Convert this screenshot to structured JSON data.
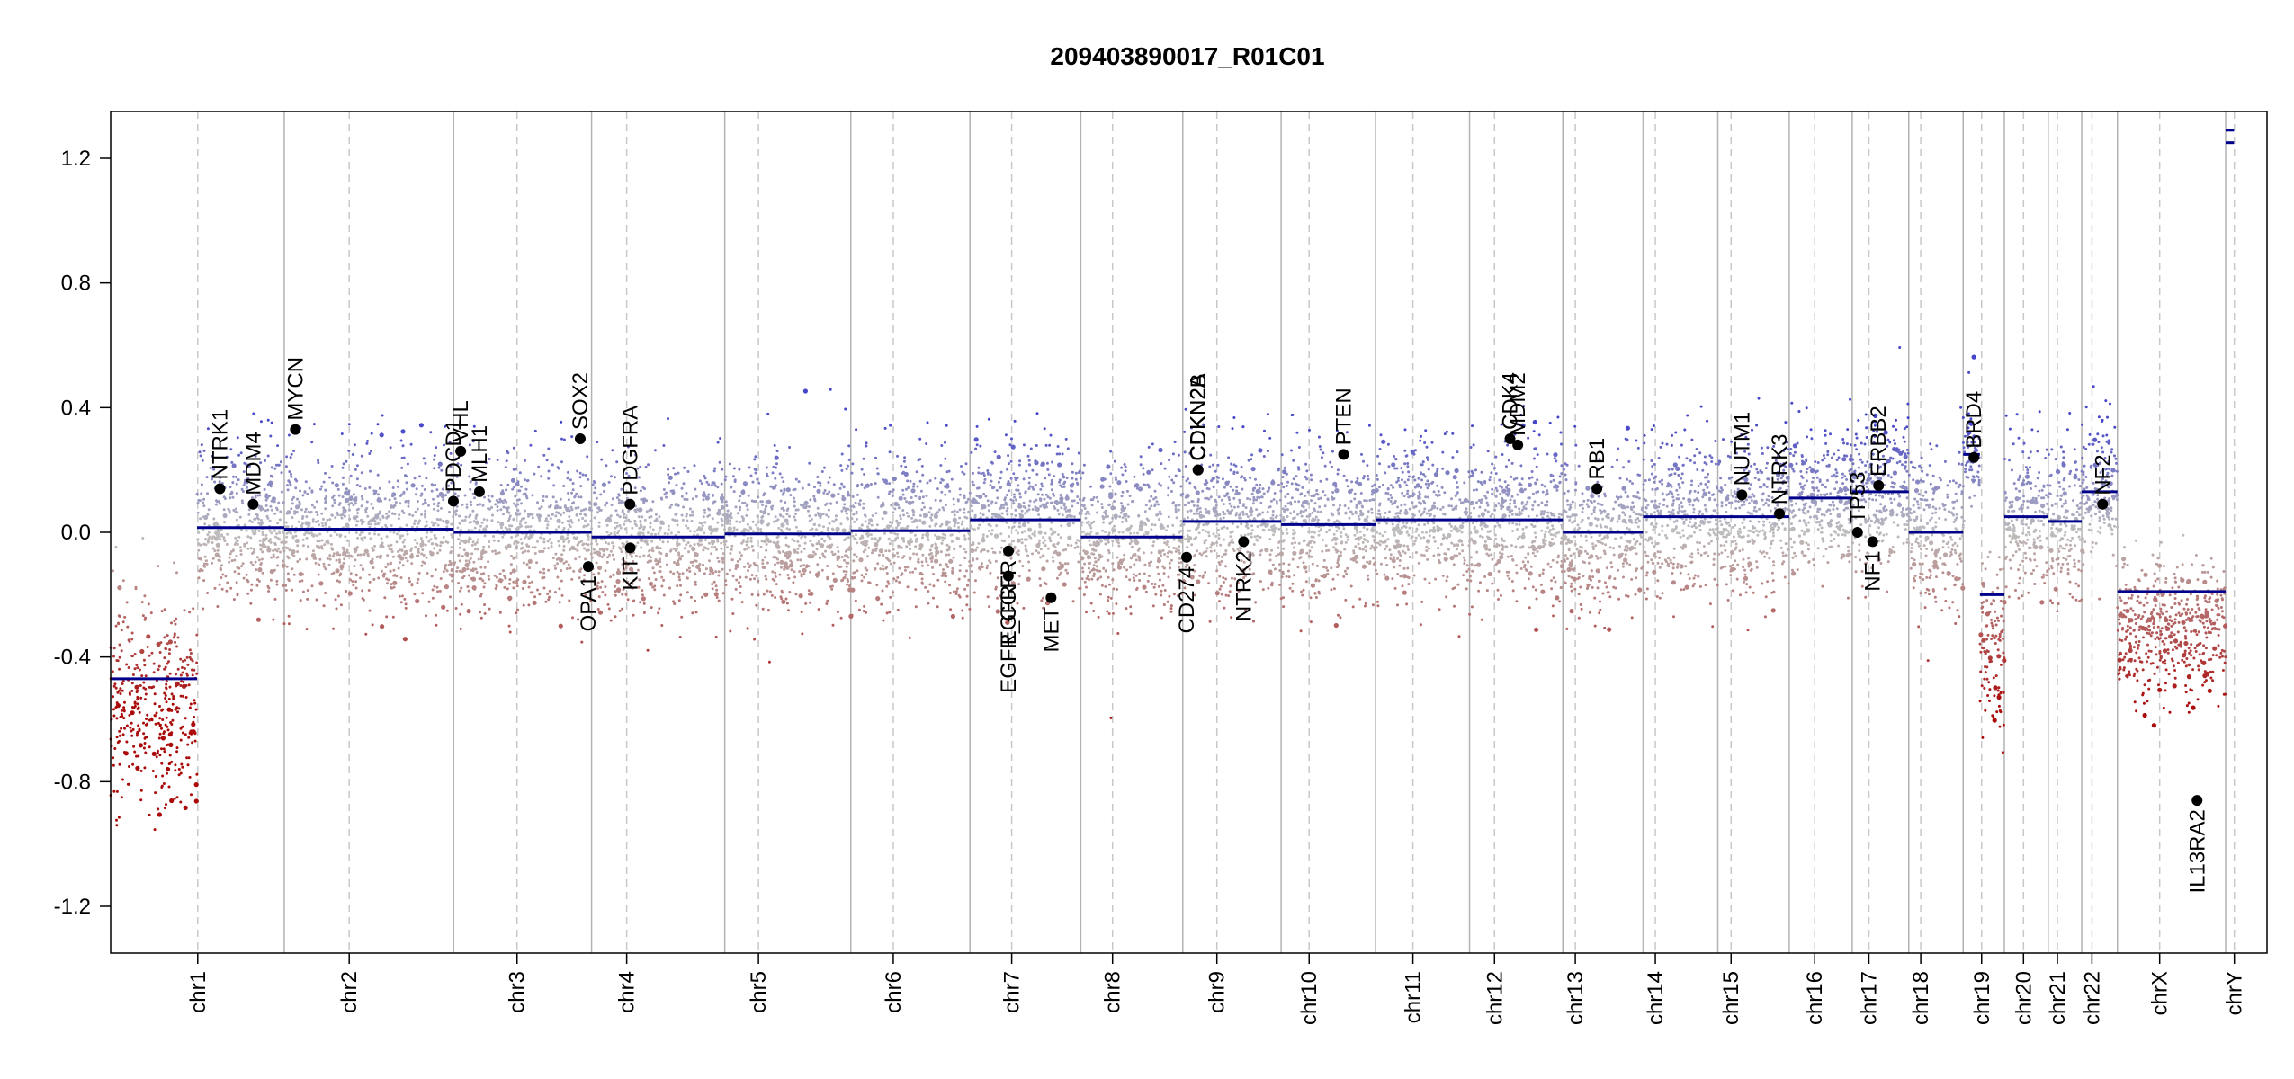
{
  "chart_data": {
    "type": "scatter",
    "title": "209403890017_R01C01",
    "xlabel": "",
    "ylabel": "",
    "ylim": [
      -1.35,
      1.35
    ],
    "grid": false,
    "legend": "none",
    "colors": {
      "segment": "#00008b",
      "gain_points": "#3a3ad0",
      "loss_points": "#a80000",
      "neutral_points": "#b4b4b4",
      "gene_marker": "#000000",
      "chromosome_boundary": "#b3b3b3",
      "centromere": "#c8c8c8",
      "frame": "#000000"
    },
    "y_ticks": [
      -1.2,
      -0.8,
      -0.4,
      0.0,
      0.4,
      0.8,
      1.2
    ],
    "y_tick_labels": [
      "-1.2",
      "-0.8",
      "-0.4",
      "0.0",
      "0.4",
      "0.8",
      "1.2"
    ],
    "chromosomes": [
      {
        "name": "chr1",
        "length": 249.2,
        "centromere": 125.0
      },
      {
        "name": "chr2",
        "length": 243.2,
        "centromere": 93.3
      },
      {
        "name": "chr3",
        "length": 198.0,
        "centromere": 91.0
      },
      {
        "name": "chr4",
        "length": 191.2,
        "centromere": 50.4
      },
      {
        "name": "chr5",
        "length": 180.9,
        "centromere": 48.4
      },
      {
        "name": "chr6",
        "length": 171.1,
        "centromere": 61.0
      },
      {
        "name": "chr7",
        "length": 159.1,
        "centromere": 59.9
      },
      {
        "name": "chr8",
        "length": 146.4,
        "centromere": 45.6
      },
      {
        "name": "chr9",
        "length": 141.2,
        "centromere": 49.0
      },
      {
        "name": "chr10",
        "length": 135.5,
        "centromere": 40.2
      },
      {
        "name": "chr11",
        "length": 135.0,
        "centromere": 53.7
      },
      {
        "name": "chr12",
        "length": 133.9,
        "centromere": 35.8
      },
      {
        "name": "chr13",
        "length": 115.2,
        "centromere": 17.9
      },
      {
        "name": "chr14",
        "length": 107.3,
        "centromere": 17.6
      },
      {
        "name": "chr15",
        "length": 102.5,
        "centromere": 19.0
      },
      {
        "name": "chr16",
        "length": 90.4,
        "centromere": 36.6
      },
      {
        "name": "chr17",
        "length": 81.2,
        "centromere": 24.0
      },
      {
        "name": "chr18",
        "length": 78.1,
        "centromere": 17.2
      },
      {
        "name": "chr19",
        "length": 59.1,
        "centromere": 26.5
      },
      {
        "name": "chr20",
        "length": 63.0,
        "centromere": 27.5
      },
      {
        "name": "chr21",
        "length": 48.1,
        "centromere": 13.2
      },
      {
        "name": "chr22",
        "length": 51.3,
        "centromere": 14.7
      },
      {
        "name": "chrX",
        "length": 155.3,
        "centromere": 60.6
      },
      {
        "name": "chrY",
        "length": 59.4,
        "centromere": 12.5
      }
    ],
    "segments": [
      {
        "chrom": "chr1",
        "start": 0,
        "end": 124,
        "value": -0.47
      },
      {
        "chrom": "chr1",
        "start": 124,
        "end": 249.2,
        "value": 0.015
      },
      {
        "chrom": "chr2",
        "start": 0,
        "end": 243.2,
        "value": 0.01
      },
      {
        "chrom": "chr3",
        "start": 0,
        "end": 198.0,
        "value": 0.0
      },
      {
        "chrom": "chr4",
        "start": 0,
        "end": 191.2,
        "value": -0.015
      },
      {
        "chrom": "chr5",
        "start": 0,
        "end": 180.9,
        "value": -0.005
      },
      {
        "chrom": "chr6",
        "start": 0,
        "end": 171.1,
        "value": 0.005
      },
      {
        "chrom": "chr7",
        "start": 0,
        "end": 159.1,
        "value": 0.04
      },
      {
        "chrom": "chr8",
        "start": 0,
        "end": 146.4,
        "value": -0.015
      },
      {
        "chrom": "chr9",
        "start": 0,
        "end": 141.2,
        "value": 0.035
      },
      {
        "chrom": "chr10",
        "start": 0,
        "end": 135.5,
        "value": 0.025
      },
      {
        "chrom": "chr11",
        "start": 0,
        "end": 135.0,
        "value": 0.04
      },
      {
        "chrom": "chr12",
        "start": 0,
        "end": 133.9,
        "value": 0.04
      },
      {
        "chrom": "chr13",
        "start": 0,
        "end": 115.2,
        "value": 0.0
      },
      {
        "chrom": "chr14",
        "start": 0,
        "end": 107.3,
        "value": 0.05
      },
      {
        "chrom": "chr15",
        "start": 0,
        "end": 102.5,
        "value": 0.05
      },
      {
        "chrom": "chr16",
        "start": 0,
        "end": 90.4,
        "value": 0.11
      },
      {
        "chrom": "chr17",
        "start": 0,
        "end": 81.2,
        "value": 0.13
      },
      {
        "chrom": "chr18",
        "start": 0,
        "end": 78.1,
        "value": 0.0
      },
      {
        "chrom": "chr19",
        "start": 0,
        "end": 24,
        "value": 0.25
      },
      {
        "chrom": "chr19",
        "start": 24,
        "end": 59.1,
        "value": -0.2
      },
      {
        "chrom": "chr20",
        "start": 0,
        "end": 63.0,
        "value": 0.05
      },
      {
        "chrom": "chr21",
        "start": 0,
        "end": 48.1,
        "value": 0.035
      },
      {
        "chrom": "chr22",
        "start": 0,
        "end": 51.3,
        "value": 0.13
      },
      {
        "chrom": "chrX",
        "start": 0,
        "end": 155.3,
        "value": -0.19
      },
      {
        "chrom": "chrY",
        "start": 0,
        "end": 12,
        "value": 1.29
      },
      {
        "chrom": "chrY",
        "start": 0,
        "end": 12,
        "value": 1.25
      }
    ],
    "point_bands": [
      {
        "chrom": "chr1",
        "start": 0,
        "end": 124,
        "center": -0.55,
        "spread": 0.32
      },
      {
        "chrom": "chr1",
        "start": 124,
        "end": 249.2,
        "center": 0.015,
        "spread": 0.22
      },
      {
        "chrom": "chr2",
        "start": 0,
        "end": 243.2,
        "center": 0.01,
        "spread": 0.22
      },
      {
        "chrom": "chr3",
        "start": 0,
        "end": 198.0,
        "center": 0.0,
        "spread": 0.22
      },
      {
        "chrom": "chr4",
        "start": 0,
        "end": 191.2,
        "center": -0.015,
        "spread": 0.22
      },
      {
        "chrom": "chr5",
        "start": 0,
        "end": 180.9,
        "center": -0.005,
        "spread": 0.22
      },
      {
        "chrom": "chr6",
        "start": 0,
        "end": 171.1,
        "center": 0.005,
        "spread": 0.22
      },
      {
        "chrom": "chr7",
        "start": 0,
        "end": 159.1,
        "center": 0.04,
        "spread": 0.22
      },
      {
        "chrom": "chr8",
        "start": 0,
        "end": 146.4,
        "center": -0.015,
        "spread": 0.22
      },
      {
        "chrom": "chr9",
        "start": 0,
        "end": 141.2,
        "center": 0.035,
        "spread": 0.22
      },
      {
        "chrom": "chr10",
        "start": 0,
        "end": 135.5,
        "center": 0.025,
        "spread": 0.22
      },
      {
        "chrom": "chr11",
        "start": 0,
        "end": 135.0,
        "center": 0.04,
        "spread": 0.22
      },
      {
        "chrom": "chr12",
        "start": 0,
        "end": 133.9,
        "center": 0.04,
        "spread": 0.22
      },
      {
        "chrom": "chr13",
        "start": 0,
        "end": 115.2,
        "center": 0.0,
        "spread": 0.22
      },
      {
        "chrom": "chr14",
        "start": 0,
        "end": 107.3,
        "center": 0.05,
        "spread": 0.22
      },
      {
        "chrom": "chr15",
        "start": 0,
        "end": 102.5,
        "center": 0.05,
        "spread": 0.22
      },
      {
        "chrom": "chr16",
        "start": 0,
        "end": 90.4,
        "center": 0.11,
        "spread": 0.22
      },
      {
        "chrom": "chr17",
        "start": 0,
        "end": 81.2,
        "center": 0.13,
        "spread": 0.22
      },
      {
        "chrom": "chr18",
        "start": 0,
        "end": 78.1,
        "center": 0.0,
        "spread": 0.22
      },
      {
        "chrom": "chr19",
        "start": 0,
        "end": 24,
        "center": 0.25,
        "spread": 0.15
      },
      {
        "chrom": "chr19",
        "start": 24,
        "end": 59.1,
        "center": -0.35,
        "spread": 0.28
      },
      {
        "chrom": "chr20",
        "start": 0,
        "end": 63.0,
        "center": 0.05,
        "spread": 0.22
      },
      {
        "chrom": "chr21",
        "start": 0,
        "end": 48.1,
        "center": 0.035,
        "spread": 0.22
      },
      {
        "chrom": "chr22",
        "start": 0,
        "end": 51.3,
        "center": 0.13,
        "spread": 0.22
      },
      {
        "chrom": "chrX",
        "start": 0,
        "end": 155.3,
        "center": -0.32,
        "spread": 0.2
      }
    ],
    "genes": [
      {
        "name": "NTRK1",
        "chrom": "chr1",
        "pos": 156.8,
        "value": 0.14
      },
      {
        "name": "MDM4",
        "chrom": "chr1",
        "pos": 204.5,
        "value": 0.09
      },
      {
        "name": "MYCN",
        "chrom": "chr2",
        "pos": 16.0,
        "value": 0.33
      },
      {
        "name": "PDCD1",
        "chrom": "chr2",
        "pos": 242.8,
        "value": 0.1
      },
      {
        "name": "VHL",
        "chrom": "chr3",
        "pos": 10.2,
        "value": 0.26
      },
      {
        "name": "MLH1",
        "chrom": "chr3",
        "pos": 37.0,
        "value": 0.13
      },
      {
        "name": "SOX2",
        "chrom": "chr3",
        "pos": 181.7,
        "value": 0.3
      },
      {
        "name": "OPA1",
        "chrom": "chr3",
        "pos": 193.3,
        "value": -0.11
      },
      {
        "name": "PDGFRA",
        "chrom": "chr4",
        "pos": 55.1,
        "value": 0.09
      },
      {
        "name": "KIT",
        "chrom": "chr4",
        "pos": 55.5,
        "value": -0.05
      },
      {
        "name": "EGFR",
        "chrom": "chr7",
        "pos": 55.1,
        "value": -0.14
      },
      {
        "name": "EGFR_CGFR",
        "chrom": "chr7",
        "pos": 55.3,
        "value": -0.06
      },
      {
        "name": "MET",
        "chrom": "chr7",
        "pos": 116.4,
        "value": -0.21
      },
      {
        "name": "CD274",
        "chrom": "chr9",
        "pos": 5.5,
        "value": -0.08
      },
      {
        "name": "CDKN2A",
        "chrom": "chr9",
        "pos": 21.9,
        "value": 0.2
      },
      {
        "name": "CDKN2B",
        "chrom": "chr9",
        "pos": 22.0,
        "value": 0.2
      },
      {
        "name": "NTRK2",
        "chrom": "chr9",
        "pos": 87.3,
        "value": -0.03
      },
      {
        "name": "PTEN",
        "chrom": "chr10",
        "pos": 89.6,
        "value": 0.25
      },
      {
        "name": "CDK4",
        "chrom": "chr12",
        "pos": 58.1,
        "value": 0.3
      },
      {
        "name": "MDM2",
        "chrom": "chr12",
        "pos": 69.2,
        "value": 0.28
      },
      {
        "name": "RB1",
        "chrom": "chr13",
        "pos": 48.9,
        "value": 0.14
      },
      {
        "name": "NUTM1",
        "chrom": "chr15",
        "pos": 34.6,
        "value": 0.12
      },
      {
        "name": "NTRK3",
        "chrom": "chr15",
        "pos": 88.5,
        "value": 0.06
      },
      {
        "name": "TP53",
        "chrom": "chr17",
        "pos": 7.6,
        "value": 0.0
      },
      {
        "name": "NF1",
        "chrom": "chr17",
        "pos": 29.5,
        "value": -0.03
      },
      {
        "name": "ERBB2",
        "chrom": "chr17",
        "pos": 37.9,
        "value": 0.15
      },
      {
        "name": "BRD4",
        "chrom": "chr19",
        "pos": 15.4,
        "value": 0.24
      },
      {
        "name": "NF2",
        "chrom": "chr22",
        "pos": 30.0,
        "value": 0.09
      },
      {
        "name": "IL13RA2",
        "chrom": "chrX",
        "pos": 114.3,
        "value": -0.86
      }
    ]
  }
}
